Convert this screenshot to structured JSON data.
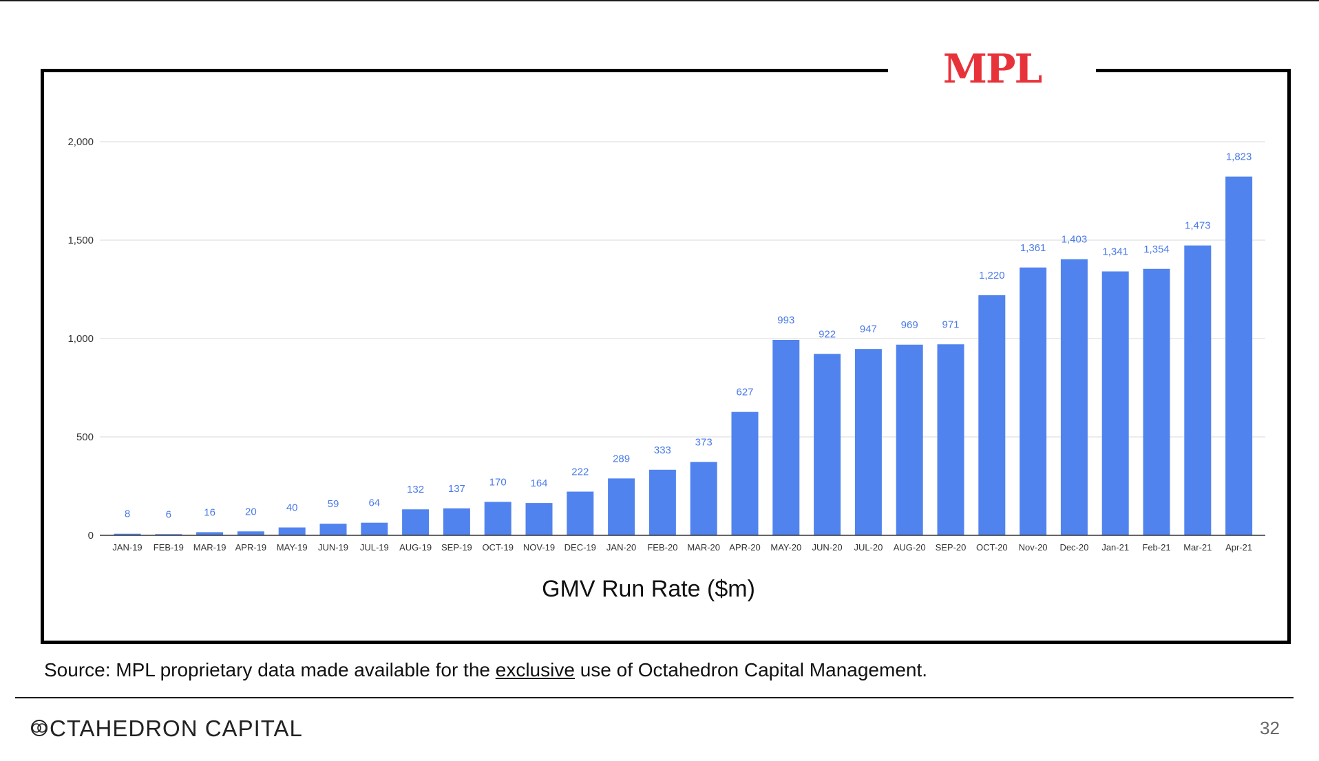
{
  "logo_text": "MPL",
  "chart_data": {
    "type": "bar",
    "title": "GMV Run Rate ($m)",
    "xlabel": "",
    "ylabel": "",
    "ylim": [
      0,
      2000
    ],
    "yticks": [
      0,
      500,
      1000,
      1500,
      2000
    ],
    "ytick_labels": [
      "0",
      "500",
      "1,000",
      "1,500",
      "2,000"
    ],
    "grid": true,
    "legend": "none",
    "bar_color": "#5183ee",
    "label_color": "#4a7ae8",
    "categories": [
      "JAN-19",
      "FEB-19",
      "MAR-19",
      "APR-19",
      "MAY-19",
      "JUN-19",
      "JUL-19",
      "AUG-19",
      "SEP-19",
      "OCT-19",
      "NOV-19",
      "DEC-19",
      "JAN-20",
      "FEB-20",
      "MAR-20",
      "APR-20",
      "MAY-20",
      "JUN-20",
      "JUL-20",
      "AUG-20",
      "SEP-20",
      "OCT-20",
      "Nov-20",
      "Dec-20",
      "Jan-21",
      "Feb-21",
      "Mar-21",
      "Apr-21"
    ],
    "values": [
      8,
      6,
      16,
      20,
      40,
      59,
      64,
      132,
      137,
      170,
      164,
      222,
      289,
      333,
      373,
      627,
      993,
      922,
      947,
      969,
      971,
      1220,
      1361,
      1403,
      1341,
      1354,
      1473,
      1823
    ],
    "value_labels": [
      "8",
      "6",
      "16",
      "20",
      "40",
      "59",
      "64",
      "132",
      "137",
      "170",
      "164",
      "222",
      "289",
      "333",
      "373",
      "627",
      "993",
      "922",
      "947",
      "969",
      "971",
      "1,220",
      "1,361",
      "1,403",
      "1,341",
      "1,354",
      "1,473",
      "1,823"
    ]
  },
  "footer": {
    "source_prefix": "Source: MPL proprietary data made available for the ",
    "source_emphasis": "exclusive",
    "source_suffix": " use of Octahedron Capital Management.",
    "brand": "CTAHEDRON CAPITAL",
    "page_number": "32"
  }
}
